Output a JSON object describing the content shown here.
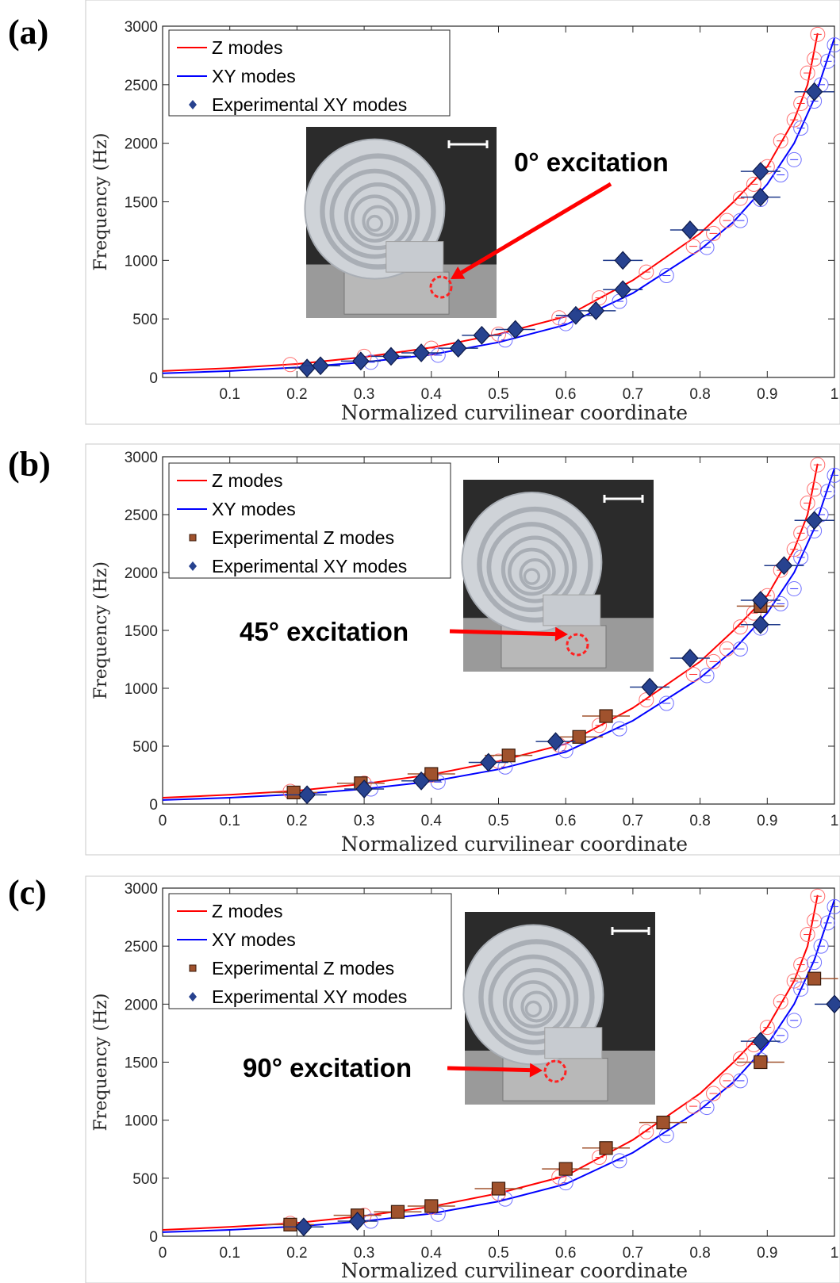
{
  "chart_data": [
    {
      "panel": "(a)",
      "type": "scatter",
      "xlabel": "Normalized curvilinear coordinate",
      "ylabel": "Frequency (Hz)",
      "xlim": [
        0,
        1
      ],
      "ylim": [
        0,
        3000
      ],
      "xticks": [
        "0.1",
        "0.2",
        "0.3",
        "0.4",
        "0.5",
        "0.6",
        "0.7",
        "0.8",
        "0.9",
        "1"
      ],
      "yticks": [
        "0",
        "500",
        "1000",
        "1500",
        "2000",
        "2500",
        "3000"
      ],
      "legend": [
        "Z modes",
        "XY modes",
        "Experimental XY modes"
      ],
      "legend_position": "top-left",
      "callout": "0° excitation",
      "series": [
        {
          "name": "Experimental XY modes",
          "marker": "diamond",
          "color": "#27428f",
          "x": [
            0.215,
            0.235,
            0.295,
            0.34,
            0.385,
            0.44,
            0.475,
            0.525,
            0.615,
            0.645,
            0.685,
            0.685,
            0.785,
            0.89,
            0.89,
            0.97
          ],
          "y": [
            80,
            100,
            140,
            180,
            210,
            250,
            360,
            410,
            530,
            570,
            750,
            1000,
            1260,
            1540,
            1760,
            2440
          ]
        }
      ]
    },
    {
      "panel": "(b)",
      "type": "scatter",
      "xlabel": "Normalized curvilinear coordinate",
      "ylabel": "Frequency (Hz)",
      "xlim": [
        0,
        1
      ],
      "ylim": [
        0,
        3000
      ],
      "xticks": [
        "0",
        "0.1",
        "0.2",
        "0.3",
        "0.4",
        "0.5",
        "0.6",
        "0.7",
        "0.8",
        "0.9",
        "1"
      ],
      "yticks": [
        "0",
        "500",
        "1000",
        "1500",
        "2000",
        "2500",
        "3000"
      ],
      "legend": [
        "Z modes",
        "XY modes",
        "Experimental Z modes",
        "Experimental XY modes"
      ],
      "legend_position": "top-left",
      "callout": "45° excitation",
      "series": [
        {
          "name": "Experimental Z modes",
          "marker": "square",
          "color": "#a0522d",
          "x": [
            0.195,
            0.295,
            0.4,
            0.515,
            0.62,
            0.66,
            0.89
          ],
          "y": [
            100,
            180,
            260,
            420,
            580,
            760,
            1710
          ]
        },
        {
          "name": "Experimental XY modes",
          "marker": "diamond",
          "color": "#27428f",
          "x": [
            0.215,
            0.3,
            0.385,
            0.485,
            0.585,
            0.725,
            0.785,
            0.89,
            0.89,
            0.925,
            0.97
          ],
          "y": [
            80,
            130,
            200,
            360,
            540,
            1010,
            1260,
            1550,
            1760,
            2060,
            2450
          ]
        }
      ]
    },
    {
      "panel": "(c)",
      "type": "scatter",
      "xlabel": "Normalized curvilinear coordinate",
      "ylabel": "Frequency (Hz)",
      "xlim": [
        0,
        1
      ],
      "ylim": [
        0,
        3000
      ],
      "xticks": [
        "0",
        "0.1",
        "0.2",
        "0.3",
        "0.4",
        "0.5",
        "0.6",
        "0.7",
        "0.8",
        "0.9",
        "1"
      ],
      "yticks": [
        "0",
        "500",
        "1000",
        "1500",
        "2000",
        "2500",
        "3000"
      ],
      "legend": [
        "Z modes",
        "XY modes",
        "Experimental Z modes",
        "Experimental XY modes"
      ],
      "legend_position": "top-left",
      "callout": "90° excitation",
      "series": [
        {
          "name": "Experimental Z modes",
          "marker": "square",
          "color": "#a0522d",
          "x": [
            0.19,
            0.29,
            0.35,
            0.4,
            0.5,
            0.6,
            0.66,
            0.745,
            0.89,
            0.97
          ],
          "y": [
            100,
            180,
            210,
            260,
            410,
            580,
            760,
            980,
            1500,
            2220
          ]
        },
        {
          "name": "Experimental XY modes",
          "marker": "diamond",
          "color": "#27428f",
          "x": [
            0.21,
            0.29,
            0.89,
            1.0
          ],
          "y": [
            80,
            130,
            1680,
            2000
          ]
        }
      ]
    }
  ],
  "model_curves": [
    {
      "name": "Z modes",
      "color": "#ff0000",
      "x": [
        0.0,
        0.1,
        0.2,
        0.3,
        0.4,
        0.5,
        0.6,
        0.7,
        0.8,
        0.85,
        0.9,
        0.94,
        0.96,
        0.975
      ],
      "y": [
        55,
        80,
        115,
        175,
        255,
        370,
        520,
        830,
        1230,
        1500,
        1800,
        2200,
        2500,
        2940
      ]
    },
    {
      "name": "XY modes",
      "color": "#0000ff",
      "x": [
        0.0,
        0.1,
        0.2,
        0.3,
        0.4,
        0.5,
        0.6,
        0.7,
        0.8,
        0.85,
        0.9,
        0.94,
        0.97,
        1.0
      ],
      "y": [
        35,
        55,
        85,
        130,
        195,
        300,
        450,
        720,
        1090,
        1330,
        1650,
        2000,
        2380,
        2900
      ]
    }
  ],
  "model_markers": {
    "Z modes": {
      "x": [
        0.19,
        0.3,
        0.4,
        0.5,
        0.59,
        0.65,
        0.72,
        0.79,
        0.82,
        0.84,
        0.86,
        0.88,
        0.9,
        0.92,
        0.94,
        0.95,
        0.96,
        0.97,
        0.975
      ],
      "y": [
        110,
        180,
        250,
        370,
        510,
        680,
        900,
        1120,
        1230,
        1340,
        1530,
        1650,
        1800,
        2020,
        2200,
        2340,
        2600,
        2720,
        2930
      ]
    },
    "XY modes": {
      "x": [
        0.31,
        0.41,
        0.51,
        0.6,
        0.68,
        0.75,
        0.81,
        0.86,
        0.89,
        0.92,
        0.94,
        0.95,
        0.97,
        0.98,
        0.99,
        1.0
      ],
      "y": [
        130,
        190,
        320,
        460,
        650,
        870,
        1110,
        1340,
        1520,
        1730,
        1860,
        2130,
        2360,
        2500,
        2700,
        2840
      ]
    }
  }
}
